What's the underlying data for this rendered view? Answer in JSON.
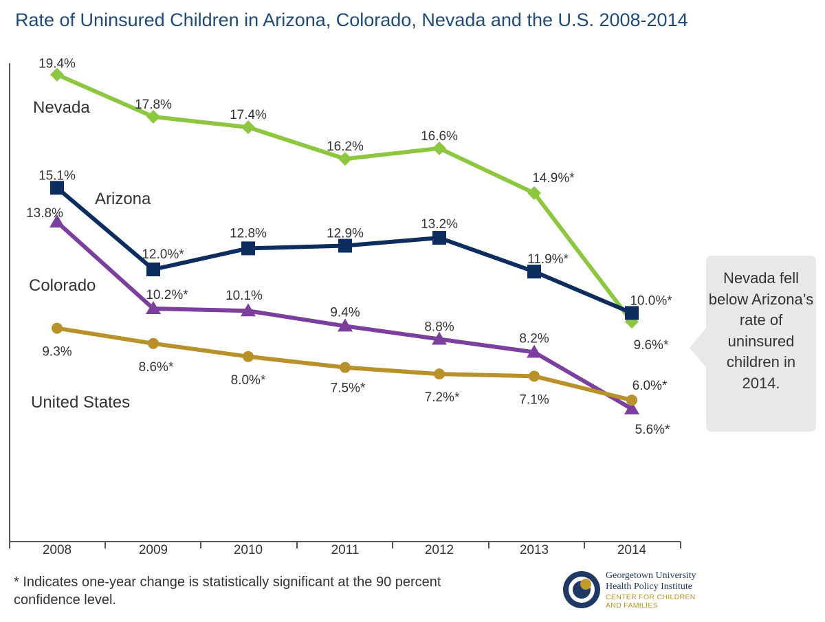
{
  "title": "Rate of Uninsured Children in Arizona, Colorado, Nevada and the U.S. 2008-2014",
  "footnote": "* Indicates one-year change is statistically significant at the 90 percent confidence level.",
  "callout": "Nevada fell below Arizona’s rate of uninsured children in 2014.",
  "logo": {
    "name_line1": "Georgetown University",
    "name_line2": "Health Policy Institute",
    "sub_line1": "CENTER FOR CHILDREN",
    "sub_line2": "AND FAMILIES"
  },
  "colors": {
    "nevada": "#8dc63f",
    "arizona": "#0d2d5e",
    "colorado": "#7b3f9e",
    "united_states": "#b8912a",
    "title": "#1e4a7a"
  },
  "chart_data": {
    "type": "line",
    "title": "Rate of Uninsured Children in Arizona, Colorado, Nevada and the U.S. 2008-2014",
    "x": [
      "2008",
      "2009",
      "2010",
      "2011",
      "2012",
      "2013",
      "2014"
    ],
    "ylabel": "",
    "xlabel": "",
    "grid": false,
    "series": [
      {
        "name": "Nevada",
        "marker": "diamond",
        "color": "#8dc63f",
        "values": [
          19.4,
          17.8,
          17.4,
          16.2,
          16.6,
          14.9,
          9.6
        ],
        "labels": [
          "19.4%",
          "17.8%",
          "17.4%",
          "16.2%",
          "16.6%",
          "14.9%*",
          "9.6%*"
        ]
      },
      {
        "name": "Arizona",
        "marker": "square",
        "color": "#0d2d5e",
        "values": [
          15.1,
          12.0,
          12.8,
          12.9,
          13.2,
          11.9,
          10.0
        ],
        "labels": [
          "15.1%",
          "12.0%*",
          "12.8%",
          "12.9%",
          "13.2%",
          "11.9%*",
          "10.0%*"
        ]
      },
      {
        "name": "Colorado",
        "marker": "triangle",
        "color": "#7b3f9e",
        "values": [
          13.8,
          10.2,
          10.1,
          9.4,
          8.8,
          8.2,
          5.6
        ],
        "labels": [
          "13.8%",
          "10.2%*",
          "10.1%",
          "9.4%",
          "8.8%",
          "8.2%",
          "5.6%*"
        ]
      },
      {
        "name": "United States",
        "marker": "circle",
        "color": "#b8912a",
        "values": [
          9.3,
          8.6,
          8.0,
          7.5,
          7.2,
          7.1,
          6.0
        ],
        "labels": [
          "9.3%",
          "8.6%*",
          "8.0%*",
          "7.5%*",
          "7.2%*",
          "7.1%",
          "6.0%*"
        ]
      }
    ]
  }
}
